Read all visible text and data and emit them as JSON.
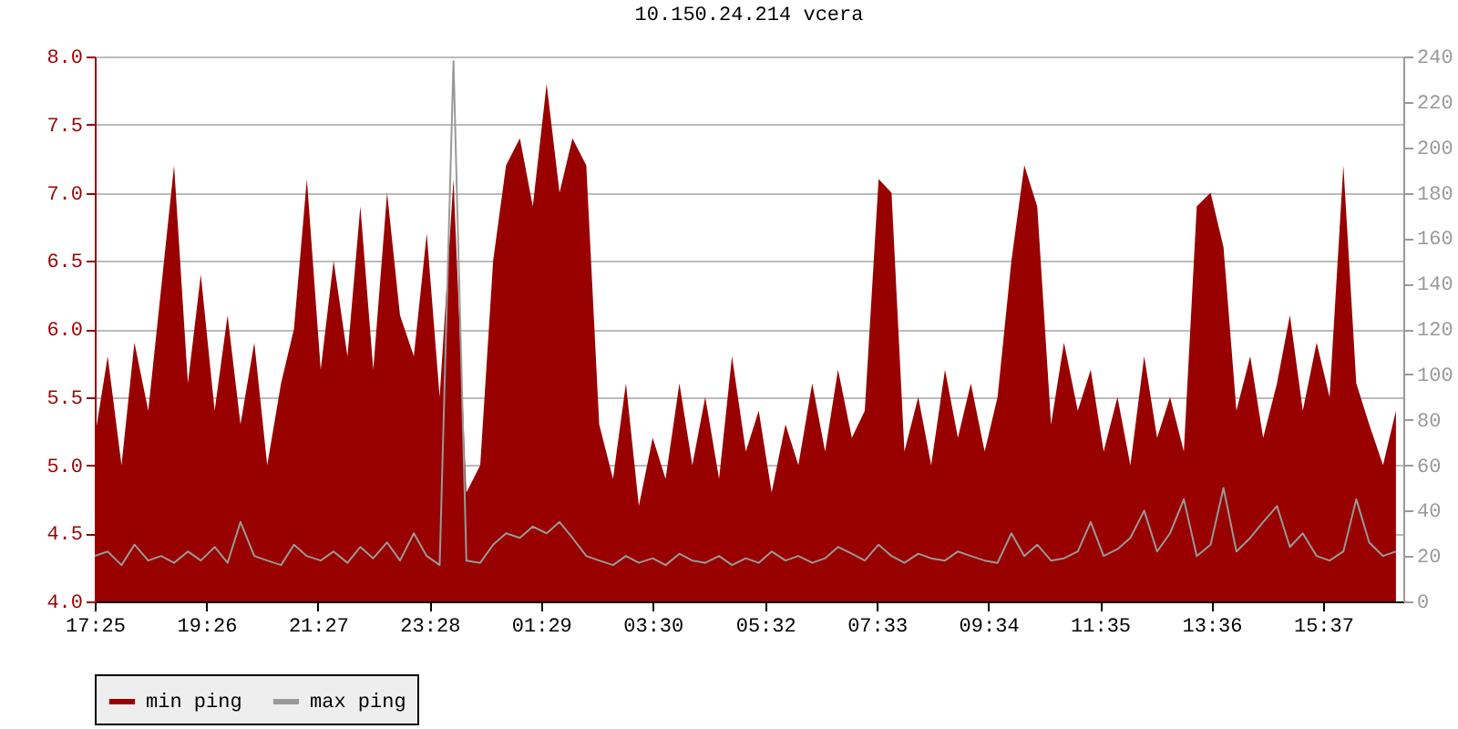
{
  "chart_data": {
    "type": "area",
    "title": "10.150.24.214 vcera",
    "x": [
      "--01-01T17:25",
      "--01-01T17:39",
      "--01-01T17:54",
      "--01-01T18:08",
      "--01-01T18:23",
      "--01-01T18:37",
      "--01-01T18:51",
      "--01-01T19:06",
      "--01-01T19:20",
      "--01-01T19:35",
      "--01-01T19:49",
      "--01-01T20:03",
      "--01-01T20:18",
      "--01-01T20:32",
      "--01-01T20:47",
      "--01-01T21:01",
      "--01-01T21:15",
      "--01-01T21:30",
      "--01-01T21:44",
      "--01-01T21:59",
      "--01-01T22:13",
      "--01-01T22:27",
      "--01-01T22:42",
      "--01-01T22:56",
      "--01-01T23:11",
      "--01-01T23:25",
      "--01-01T23:39",
      "--01-01T23:54",
      "--01-02T00:08",
      "--01-02T00:23",
      "--01-02T00:37",
      "--01-02T00:51",
      "--01-02T01:06",
      "--01-02T01:20",
      "--01-02T01:35",
      "--01-02T01:49",
      "--01-02T02:03",
      "--01-02T02:18",
      "--01-02T02:32",
      "--01-02T02:47",
      "--01-02T03:01",
      "--01-02T03:15",
      "--01-02T03:30",
      "--01-02T03:44",
      "--01-02T03:59",
      "--01-02T04:13",
      "--01-02T04:27",
      "--01-02T04:42",
      "--01-02T04:56",
      "--01-02T05:11",
      "--01-02T05:25",
      "--01-02T05:39",
      "--01-02T05:54",
      "--01-02T06:08",
      "--01-02T06:23",
      "--01-02T06:37",
      "--01-02T06:51",
      "--01-02T07:06",
      "--01-02T07:20",
      "--01-02T07:35",
      "--01-02T07:49",
      "--01-02T08:03",
      "--01-02T08:18",
      "--01-02T08:32",
      "--01-02T08:47",
      "--01-02T09:01",
      "--01-02T09:15",
      "--01-02T09:30",
      "--01-02T09:44",
      "--01-02T09:59",
      "--01-02T10:13",
      "--01-02T10:27",
      "--01-02T10:42",
      "--01-02T10:56",
      "--01-02T11:11",
      "--01-02T11:25",
      "--01-02T11:39",
      "--01-02T11:54",
      "--01-02T12:08",
      "--01-02T12:23",
      "--01-02T12:37",
      "--01-02T12:51",
      "--01-02T13:06",
      "--01-02T13:20",
      "--01-02T13:35",
      "--01-02T13:49",
      "--01-02T14:03",
      "--01-02T14:18",
      "--01-02T14:32",
      "--01-02T14:47",
      "--01-02T15:01",
      "--01-02T15:15",
      "--01-02T15:30",
      "--01-02T15:44",
      "--01-02T15:59",
      "--01-02T16:13",
      "--01-02T16:27",
      "--01-02T16:42",
      "--01-02T16:56"
    ],
    "series": [
      {
        "name": "min ping",
        "color": "#990000",
        "values": [
          5.2,
          5.8,
          5.0,
          5.9,
          5.4,
          6.3,
          7.2,
          5.6,
          6.4,
          5.4,
          6.1,
          5.3,
          5.9,
          5.0,
          5.6,
          6.0,
          7.1,
          5.7,
          6.5,
          5.8,
          6.9,
          5.7,
          7.0,
          6.1,
          5.8,
          6.7,
          5.5,
          7.1,
          4.8,
          5.0,
          6.5,
          7.2,
          7.4,
          6.9,
          7.8,
          7.0,
          7.4,
          7.2,
          5.3,
          4.9,
          5.6,
          4.7,
          5.2,
          4.9,
          5.6,
          5.0,
          5.5,
          4.9,
          5.8,
          5.1,
          5.4,
          4.8,
          5.3,
          5.0,
          5.6,
          5.1,
          5.7,
          5.2,
          5.4,
          7.1,
          7.0,
          5.1,
          5.5,
          5.0,
          5.7,
          5.2,
          5.6,
          5.1,
          5.5,
          6.5,
          7.2,
          6.9,
          5.3,
          5.9,
          5.4,
          5.7,
          5.1,
          5.5,
          5.0,
          5.8,
          5.2,
          5.5,
          5.1,
          6.9,
          7.0,
          6.6,
          5.4,
          5.8,
          5.2,
          5.6,
          6.1,
          5.4,
          5.9,
          5.5,
          7.2,
          5.6,
          5.3,
          5.0,
          5.4
        ]
      },
      {
        "name": "max ping",
        "type": "line",
        "axis": "y2",
        "color": "#999999",
        "values": [
          20,
          22,
          16,
          25,
          18,
          20,
          17,
          22,
          18,
          24,
          17,
          35,
          20,
          18,
          16,
          25,
          20,
          18,
          22,
          17,
          24,
          19,
          26,
          18,
          30,
          20,
          16,
          238,
          18,
          17,
          25,
          30,
          28,
          33,
          30,
          35,
          28,
          20,
          18,
          16,
          20,
          17,
          19,
          16,
          21,
          18,
          17,
          20,
          16,
          19,
          17,
          22,
          18,
          20,
          17,
          19,
          24,
          21,
          18,
          25,
          20,
          17,
          21,
          19,
          18,
          22,
          20,
          18,
          17,
          30,
          20,
          25,
          18,
          19,
          22,
          35,
          20,
          23,
          28,
          40,
          22,
          30,
          45,
          20,
          25,
          50,
          22,
          28,
          35,
          42,
          24,
          30,
          20,
          18,
          22,
          45,
          26,
          20,
          22
        ]
      }
    ],
    "xlim": [
      "--01-01T17:25",
      "--01-02T17:04"
    ],
    "xticks": [
      {
        "value": "--01-01T17:25",
        "label": "17:25"
      },
      {
        "value": "--01-01T19:26",
        "label": "19:26"
      },
      {
        "value": "--01-01T21:27",
        "label": "21:27"
      },
      {
        "value": "--01-01T23:28",
        "label": "23:28"
      },
      {
        "value": "--01-02T01:29",
        "label": "01:29"
      },
      {
        "value": "--01-02T03:30",
        "label": "03:30"
      },
      {
        "value": "--01-02T05:32",
        "label": "05:32"
      },
      {
        "value": "--01-02T07:33",
        "label": "07:33"
      },
      {
        "value": "--01-02T09:34",
        "label": "09:34"
      },
      {
        "value": "--01-02T11:35",
        "label": "11:35"
      },
      {
        "value": "--01-02T13:36",
        "label": "13:36"
      },
      {
        "value": "--01-02T15:37",
        "label": "15:37"
      }
    ],
    "ylim": [
      4,
      8
    ],
    "yticks": [
      {
        "value": 4,
        "label": "4.0"
      },
      {
        "value": 4.5,
        "label": "4.5"
      },
      {
        "value": 5,
        "label": "5.0"
      },
      {
        "value": 5.5,
        "label": "5.5"
      },
      {
        "value": 6,
        "label": "6.0"
      },
      {
        "value": 6.5,
        "label": "6.5"
      },
      {
        "value": 7,
        "label": "7.0"
      },
      {
        "value": 7.5,
        "label": "7.5"
      },
      {
        "value": 8,
        "label": "8.0"
      }
    ],
    "y2lim": [
      0,
      240
    ],
    "y2ticks": [
      0,
      20,
      40,
      60,
      80,
      100,
      120,
      140,
      160,
      180,
      200,
      220,
      240
    ],
    "grid": "y",
    "legend": "bottom"
  }
}
